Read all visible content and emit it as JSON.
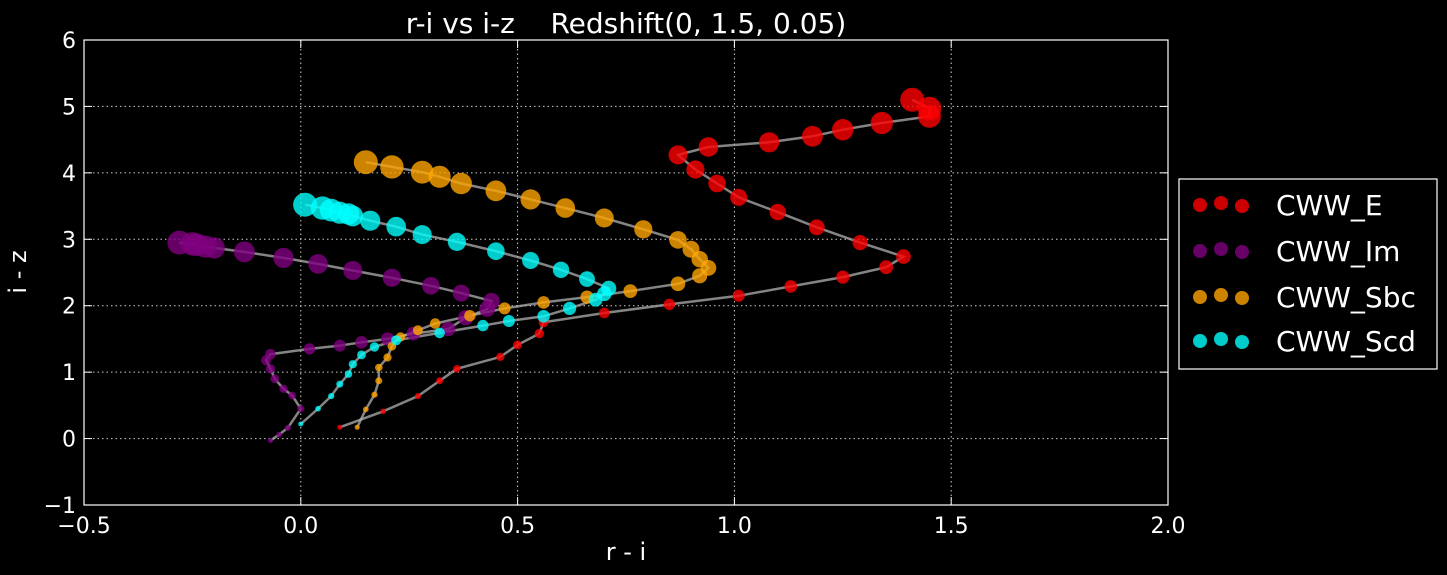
{
  "chart_data": {
    "type": "scatter",
    "title": "r-i vs i-z    Redshift(0, 1.5, 0.05)",
    "xlabel": "r - i",
    "ylabel": "i - z",
    "xlim": [
      -0.5,
      2.0
    ],
    "ylim": [
      -1,
      6
    ],
    "xticks": [
      -0.5,
      0.0,
      0.5,
      1.0,
      1.5,
      2.0
    ],
    "xtick_labels": [
      "−0.5",
      "0.0",
      "0.5",
      "1.0",
      "1.5",
      "2.0"
    ],
    "yticks": [
      -1,
      0,
      1,
      2,
      3,
      4,
      5,
      6
    ],
    "ytick_labels": [
      "−1",
      "0",
      "1",
      "2",
      "3",
      "4",
      "5",
      "6"
    ],
    "grid": true,
    "legend_position": "outside-right",
    "marker_size_encodes": "redshift (0 to 1.5, step 0.05)",
    "path_color": "#b0b0b0",
    "series": [
      {
        "name": "CWW_E",
        "color": "#ff0000",
        "x": [
          0.09,
          0.19,
          0.27,
          0.32,
          0.36,
          0.46,
          0.5,
          0.55,
          0.56,
          0.7,
          0.85,
          1.01,
          1.13,
          1.25,
          1.35,
          1.39,
          1.29,
          1.19,
          1.1,
          1.01,
          0.96,
          0.91,
          0.87,
          0.94,
          1.08,
          1.18,
          1.25,
          1.34,
          1.45,
          1.45,
          1.41
        ],
        "y": [
          0.17,
          0.41,
          0.64,
          0.87,
          1.05,
          1.23,
          1.41,
          1.58,
          1.75,
          1.89,
          2.02,
          2.15,
          2.29,
          2.43,
          2.58,
          2.74,
          2.95,
          3.18,
          3.41,
          3.63,
          3.84,
          4.05,
          4.27,
          4.39,
          4.46,
          4.55,
          4.65,
          4.75,
          4.85,
          4.97,
          5.1
        ]
      },
      {
        "name": "CWW_Im",
        "color": "#800080",
        "x": [
          -0.07,
          -0.05,
          -0.03,
          0.0,
          -0.02,
          -0.04,
          -0.06,
          -0.07,
          -0.08,
          -0.07,
          0.02,
          0.09,
          0.14,
          0.2,
          0.26,
          0.34,
          0.38,
          0.43,
          0.44,
          0.37,
          0.3,
          0.21,
          0.12,
          0.04,
          -0.04,
          -0.13,
          -0.2,
          -0.22,
          -0.24,
          -0.25,
          -0.28
        ],
        "y": [
          -0.03,
          0.06,
          0.16,
          0.45,
          0.65,
          0.75,
          0.9,
          1.05,
          1.18,
          1.27,
          1.35,
          1.4,
          1.45,
          1.5,
          1.58,
          1.65,
          1.82,
          1.95,
          2.07,
          2.19,
          2.3,
          2.42,
          2.53,
          2.63,
          2.72,
          2.81,
          2.87,
          2.89,
          2.92,
          2.93,
          2.95
        ]
      },
      {
        "name": "CWW_Sbc",
        "color": "#ffa500",
        "x": [
          0.13,
          0.15,
          0.17,
          0.18,
          0.18,
          0.2,
          0.21,
          0.23,
          0.27,
          0.31,
          0.39,
          0.47,
          0.56,
          0.66,
          0.76,
          0.87,
          0.92,
          0.94,
          0.92,
          0.9,
          0.87,
          0.79,
          0.7,
          0.61,
          0.53,
          0.45,
          0.37,
          0.32,
          0.28,
          0.21,
          0.15
        ],
        "y": [
          0.17,
          0.44,
          0.66,
          0.87,
          1.07,
          1.22,
          1.39,
          1.53,
          1.63,
          1.73,
          1.85,
          1.96,
          2.05,
          2.13,
          2.22,
          2.33,
          2.45,
          2.57,
          2.7,
          2.85,
          2.99,
          3.15,
          3.32,
          3.47,
          3.6,
          3.73,
          3.84,
          3.94,
          4.01,
          4.09,
          4.16
        ]
      },
      {
        "name": "CWW_Scd",
        "color": "#00ffff",
        "x": [
          0.0,
          0.04,
          0.07,
          0.09,
          0.11,
          0.12,
          0.14,
          0.17,
          0.22,
          0.32,
          0.42,
          0.48,
          0.56,
          0.62,
          0.68,
          0.7,
          0.71,
          0.66,
          0.6,
          0.53,
          0.45,
          0.36,
          0.28,
          0.22,
          0.16,
          0.12,
          0.11,
          0.09,
          0.07,
          0.05,
          0.01
        ],
        "y": [
          0.22,
          0.45,
          0.64,
          0.82,
          0.97,
          1.12,
          1.26,
          1.38,
          1.48,
          1.59,
          1.7,
          1.77,
          1.84,
          1.96,
          2.09,
          2.18,
          2.26,
          2.4,
          2.54,
          2.68,
          2.82,
          2.96,
          3.07,
          3.19,
          3.28,
          3.35,
          3.38,
          3.4,
          3.44,
          3.47,
          3.52
        ]
      }
    ]
  }
}
